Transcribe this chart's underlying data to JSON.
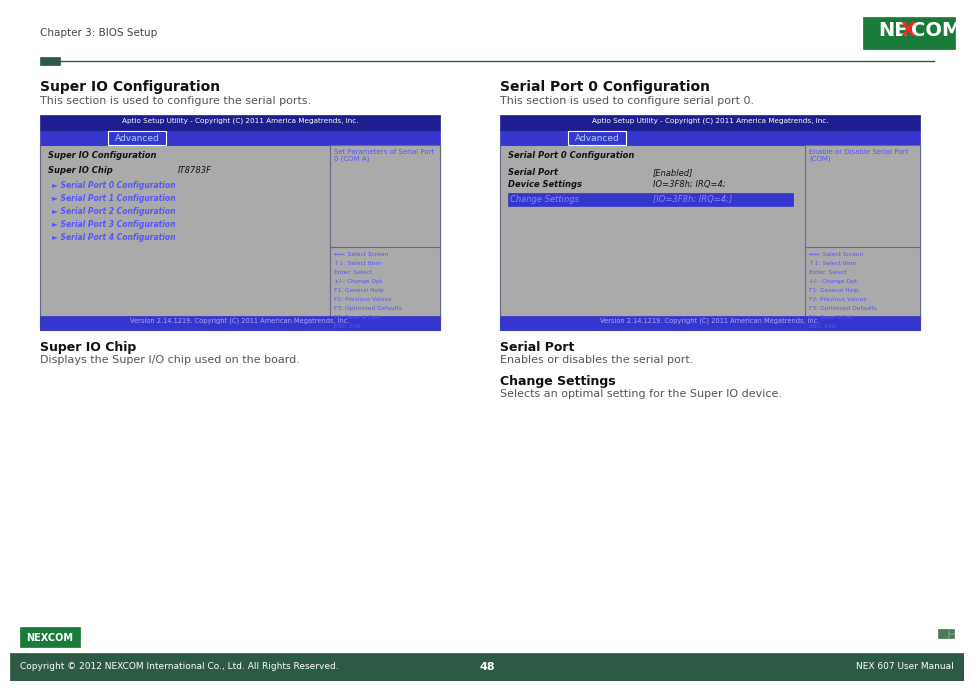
{
  "bg_color": "#ffffff",
  "header_text": "Chapter 3: BIOS Setup",
  "header_color": "#444444",
  "footer_bg": "#2d5a45",
  "footer_text_left": "Copyright © 2012 NEXCOM International Co., Ltd. All Rights Reserved.",
  "footer_text_center": "48",
  "footer_text_right": "NEX 607 User Manual",
  "nexcom_logo_bg": "#1a7a3a",
  "separator_color": "#2d5a45",
  "left": {
    "title": "Super IO Configuration",
    "subtitle": "This section is used to configure the serial ports.",
    "bios_title_bar": "Aptio Setup Utility - Copyright (C) 2011 America Megatrends, Inc.",
    "bios_tab": "Advanced",
    "content_header": "Super IO Configuration",
    "chip_label": "Super IO Chip",
    "chip_value": "IT8783F",
    "links": [
      "► Serial Port 0 Configuration",
      "► Serial Port 1 Configuration",
      "► Serial Port 2 Configuration",
      "► Serial Port 3 Configuration",
      "► Serial Port 4 Configuration"
    ],
    "help_text": "Set Parameters of Serial Port\n0 (COM A)",
    "keys": [
      "↔↔: Select Screen",
      "↑↓: Select Item",
      "Enter: Select",
      "+/-: Change Opt.",
      "F1: General Help",
      "F2: Previous Values",
      "F3: Optimized Defaults",
      "F4: Save & Exit",
      "ESC: Exit"
    ],
    "bios_footer": "Version 2.14.1219. Copyright (C) 2011 American Megatrends, Inc.",
    "bottom_title": "Super IO Chip",
    "bottom_text": "Displays the Super I/O chip used on the board."
  },
  "right": {
    "title": "Serial Port 0 Configuration",
    "subtitle": "This section is used to configure serial port 0.",
    "bios_title_bar": "Aptio Setup Utility - Copyright (C) 2011 America Megatrends, Inc.",
    "bios_tab": "Advanced",
    "content_header": "Serial Port 0 Configuration",
    "row1_label": "Serial Port",
    "row1_val": "[Enabled]",
    "row2_label": "Device Settings",
    "row2_val": "IO=3F8h; IRQ=4;",
    "row3_label": "Change Settings",
    "row3_val": "[IO=3F8h; IRQ=4;]",
    "help_text": "Enable or Disable Serial Port\n(COM)",
    "keys": [
      "↔↔: Select Screen",
      "↑↓: Select Item",
      "Enter: Select",
      "+/-: Change Opt.",
      "F1: General Help",
      "F2: Previous Values",
      "F3: Optimized Defaults",
      "F4: Save & Exit",
      "ESC: Exit"
    ],
    "bios_footer": "Version 2.14.1219. Copyright (C) 2011 American Megatrends, Inc.",
    "bottom_title1": "Serial Port",
    "bottom_text1": "Enables or disables the serial port.",
    "bottom_title2": "Change Settings",
    "bottom_text2": "Selects an optimal setting for the Super IO device."
  },
  "bios_title_bg": "#1e1e8f",
  "bios_tab_bg": "#3636cc",
  "bios_content_bg": "#aaaaaa",
  "bios_footer_bg": "#3636cc",
  "bios_blue_link": "#5555ff",
  "bios_help_blue": "#5555ff",
  "bios_border": "#666688",
  "bios_text_dark": "#111111",
  "bios_highlight_bg": "#3636cc",
  "bios_highlight_text": "#8888ff"
}
